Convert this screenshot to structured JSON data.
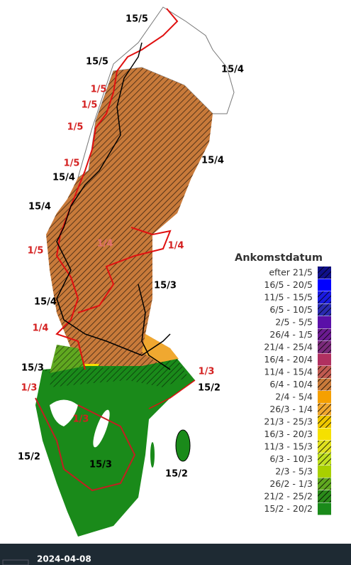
{
  "map_labels": [
    {
      "text": "15/5",
      "color": "#000000"
    },
    {
      "text": "15/5",
      "color": "#000000"
    },
    {
      "text": "15/4",
      "color": "#000000"
    },
    {
      "text": "1/5",
      "color": "#d42020"
    },
    {
      "text": "1/5",
      "color": "#d42020"
    },
    {
      "text": "1/5",
      "color": "#d42020"
    },
    {
      "text": "15/4",
      "color": "#000000"
    },
    {
      "text": "1/5",
      "color": "#d42020"
    },
    {
      "text": "15/4",
      "color": "#000000"
    },
    {
      "text": "15/4",
      "color": "#000000"
    },
    {
      "text": "1/5",
      "color": "#d42020"
    },
    {
      "text": "1/4",
      "color": "#e07070"
    },
    {
      "text": "1/4",
      "color": "#d42020"
    },
    {
      "text": "15/3",
      "color": "#000000"
    },
    {
      "text": "15/4",
      "color": "#000000"
    },
    {
      "text": "1/4",
      "color": "#d42020"
    },
    {
      "text": "15/3",
      "color": "#000000"
    },
    {
      "text": "1/3",
      "color": "#d42020"
    },
    {
      "text": "15/2",
      "color": "#000000"
    },
    {
      "text": "1/3",
      "color": "#d42020"
    },
    {
      "text": "1/3",
      "color": "#d42020"
    },
    {
      "text": "15/2",
      "color": "#000000"
    },
    {
      "text": "15/3",
      "color": "#000000"
    },
    {
      "text": "15/2",
      "color": "#000000"
    }
  ],
  "legend": {
    "title": "Ankomstdatum",
    "entries": [
      {
        "label": "efter 21/5",
        "color": "#10108a",
        "hatched": true
      },
      {
        "label": "16/5 - 20/5",
        "color": "#0000ff",
        "hatched": false
      },
      {
        "label": "11/5 - 15/5",
        "color": "#1a1ae0",
        "hatched": true
      },
      {
        "label": "6/5 - 10/5",
        "color": "#2a2ab0",
        "hatched": true
      },
      {
        "label": "2/5 - 5/5",
        "color": "#5a10a8",
        "hatched": false
      },
      {
        "label": "26/4 - 1/5",
        "color": "#6a1a90",
        "hatched": true
      },
      {
        "label": "21/4 - 25/4",
        "color": "#7a2a7a",
        "hatched": true
      },
      {
        "label": "16/4 - 20/4",
        "color": "#b03060",
        "hatched": false
      },
      {
        "label": "11/4 - 15/4",
        "color": "#c05a50",
        "hatched": true
      },
      {
        "label": "6/4 - 10/4",
        "color": "#c87a3a",
        "hatched": true
      },
      {
        "label": "2/4 - 5/4",
        "color": "#f5a000",
        "hatched": false
      },
      {
        "label": "26/3 - 1/4",
        "color": "#f0a830",
        "hatched": true
      },
      {
        "label": "21/3 - 25/3",
        "color": "#f0c800",
        "hatched": true
      },
      {
        "label": "16/3 - 20/3",
        "color": "#f5e000",
        "hatched": false
      },
      {
        "label": "11/3 - 15/3",
        "color": "#e0e020",
        "hatched": true
      },
      {
        "label": "6/3 - 10/3",
        "color": "#c0e020",
        "hatched": true
      },
      {
        "label": "2/3 - 5/3",
        "color": "#a8d000",
        "hatched": false
      },
      {
        "label": "26/2 - 1/3",
        "color": "#60a820",
        "hatched": true
      },
      {
        "label": "21/2 - 25/2",
        "color": "#2a8a1a",
        "hatched": true
      },
      {
        "label": "15/2 - 20/2",
        "color": "#1a8a1a",
        "hatched": false
      }
    ]
  },
  "footer": {
    "date": "2024-04-08"
  }
}
